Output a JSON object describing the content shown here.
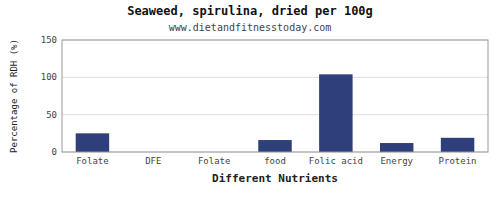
{
  "chart_data": {
    "type": "bar",
    "title": "Seaweed, spirulina, dried per 100g",
    "subtitle": "www.dietandfitnesstoday.com",
    "xlabel": "Different Nutrients",
    "ylabel": "Percentage of RDH (%)",
    "categories": [
      "Folate",
      "DFE",
      "Folate",
      "food",
      "Folic acid",
      "Energy",
      "Protein"
    ],
    "values": [
      25,
      0,
      0,
      16,
      104,
      12,
      19
    ],
    "color": "#2e3f7c",
    "ylim": [
      0,
      150
    ],
    "yticks": [
      0,
      50,
      100,
      150
    ],
    "grid": true
  }
}
